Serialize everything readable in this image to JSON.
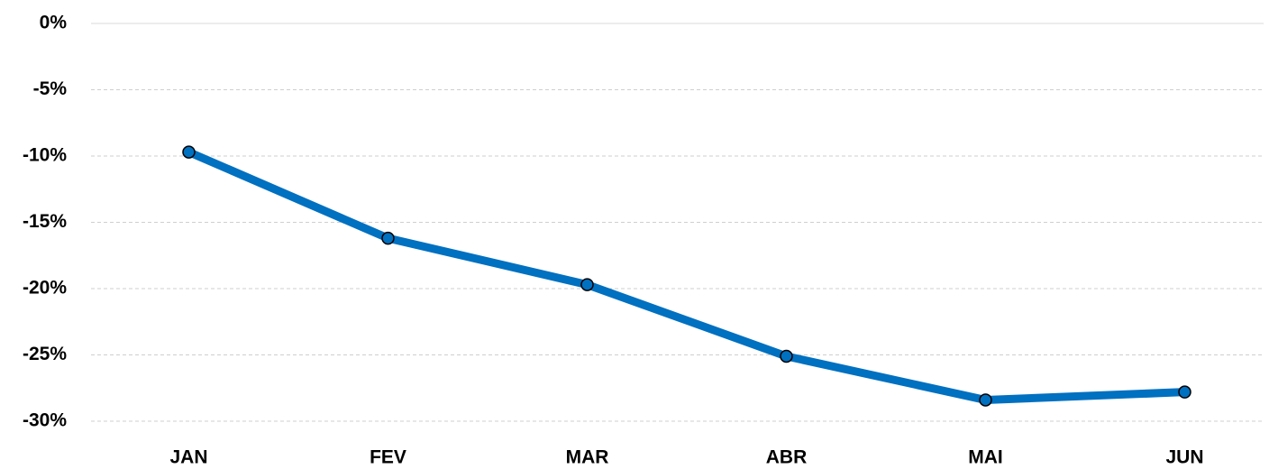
{
  "chart_data": {
    "type": "line",
    "categories": [
      "JAN",
      "FEV",
      "MAR",
      "ABR",
      "MAI",
      "JUN"
    ],
    "values": [
      -9.7,
      -16.2,
      -19.7,
      -25.1,
      -28.4,
      -27.8
    ],
    "color": "#0070c0",
    "ylim": [
      -30,
      0
    ],
    "yticks": [
      {
        "value": 0,
        "label": "0%"
      },
      {
        "value": -5,
        "label": "-5%"
      },
      {
        "value": -10,
        "label": "-10%"
      },
      {
        "value": -15,
        "label": "-15%"
      },
      {
        "value": -20,
        "label": "-20%"
      },
      {
        "value": -25,
        "label": "-25%"
      },
      {
        "value": -30,
        "label": "-30%"
      }
    ],
    "grid": true
  }
}
